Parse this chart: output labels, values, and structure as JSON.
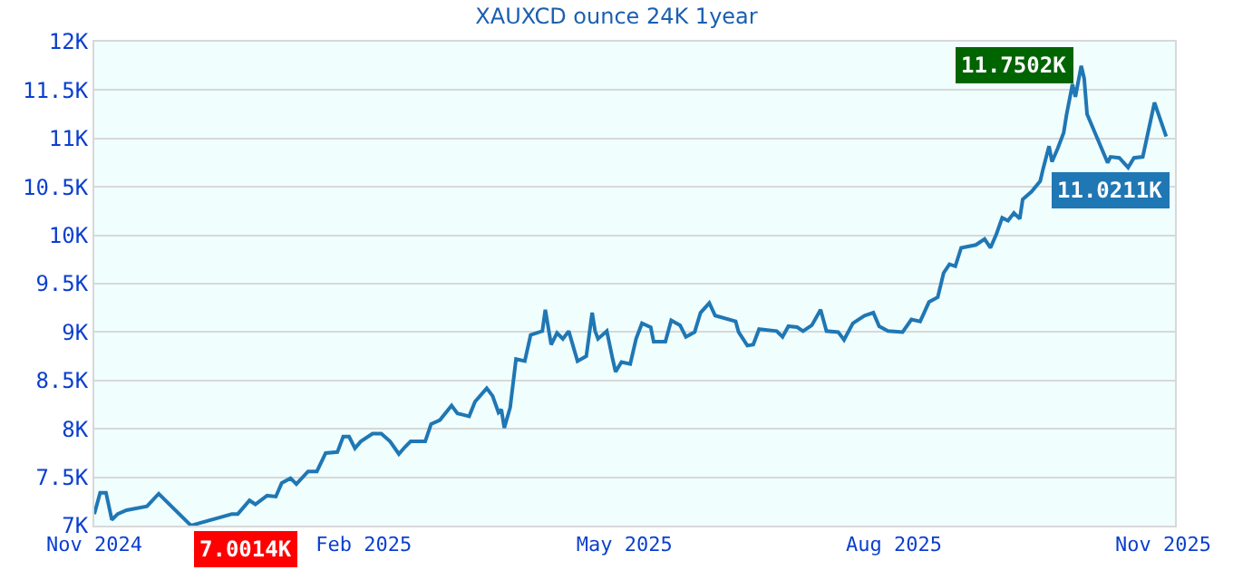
{
  "chart_data": {
    "type": "line",
    "title": "XAUXCD ounce 24K 1year",
    "x": [
      "2024-11-01",
      "2024-11-03",
      "2024-11-05",
      "2024-11-07",
      "2024-11-09",
      "2024-11-12",
      "2024-11-19",
      "2024-11-23",
      "2024-12-04",
      "2024-12-18",
      "2024-12-20",
      "2024-12-24",
      "2024-12-26",
      "2024-12-30",
      "2025-01-02",
      "2025-01-04",
      "2025-01-07",
      "2025-01-09",
      "2025-01-13",
      "2025-01-16",
      "2025-01-19",
      "2025-01-23",
      "2025-01-25",
      "2025-01-27",
      "2025-01-29",
      "2025-01-31",
      "2025-02-04",
      "2025-02-07",
      "2025-02-10",
      "2025-02-13",
      "2025-02-15",
      "2025-02-17",
      "2025-02-22",
      "2025-02-24",
      "2025-02-27",
      "2025-03-03",
      "2025-03-05",
      "2025-03-09",
      "2025-03-11",
      "2025-03-15",
      "2025-03-17",
      "2025-03-19",
      "2025-03-20",
      "2025-03-21",
      "2025-03-23",
      "2025-03-25",
      "2025-03-28",
      "2025-03-30",
      "2025-04-03",
      "2025-04-04",
      "2025-04-06",
      "2025-04-08",
      "2025-04-10",
      "2025-04-12",
      "2025-04-15",
      "2025-04-18",
      "2025-04-20",
      "2025-04-21",
      "2025-04-22",
      "2025-04-25",
      "2025-04-27",
      "2025-04-28",
      "2025-04-30",
      "2025-05-03",
      "2025-05-05",
      "2025-05-07",
      "2025-05-10",
      "2025-05-11",
      "2025-05-15",
      "2025-05-17",
      "2025-05-20",
      "2025-05-22",
      "2025-05-25",
      "2025-05-27",
      "2025-05-30",
      "2025-06-01",
      "2025-06-08",
      "2025-06-09",
      "2025-06-12",
      "2025-06-14",
      "2025-06-16",
      "2025-06-22",
      "2025-06-24",
      "2025-06-26",
      "2025-06-29",
      "2025-07-01",
      "2025-07-04",
      "2025-07-07",
      "2025-07-09",
      "2025-07-13",
      "2025-07-15",
      "2025-07-18",
      "2025-07-19",
      "2025-07-22",
      "2025-07-25",
      "2025-07-27",
      "2025-07-30",
      "2025-08-04",
      "2025-08-07",
      "2025-08-10",
      "2025-08-13",
      "2025-08-16",
      "2025-08-18",
      "2025-08-20",
      "2025-08-22",
      "2025-08-24",
      "2025-08-29",
      "2025-09-01",
      "2025-09-03",
      "2025-09-05",
      "2025-09-07",
      "2025-09-09",
      "2025-09-11",
      "2025-09-13",
      "2025-09-14",
      "2025-09-17",
      "2025-09-20",
      "2025-09-21",
      "2025-09-23",
      "2025-09-24",
      "2025-09-26",
      "2025-09-28",
      "2025-09-29",
      "2025-10-01",
      "2025-10-02",
      "2025-10-04",
      "2025-10-05",
      "2025-10-06",
      "2025-10-13",
      "2025-10-14",
      "2025-10-17",
      "2025-10-20",
      "2025-10-22",
      "2025-10-25",
      "2025-10-29",
      "2025-11-02"
    ],
    "series": [
      {
        "color": "#1f77b4",
        "values": [
          7120,
          7340,
          7340,
          7060,
          7120,
          7160,
          7200,
          7330,
          7001.4,
          7120,
          7120,
          7260,
          7220,
          7310,
          7300,
          7440,
          7490,
          7430,
          7560,
          7560,
          7750,
          7760,
          7920,
          7920,
          7800,
          7870,
          7950,
          7950,
          7870,
          7740,
          7810,
          7870,
          7870,
          8050,
          8090,
          8240,
          8160,
          8130,
          8280,
          8420,
          8340,
          8170,
          8200,
          8010,
          8220,
          8720,
          8700,
          8970,
          9010,
          9230,
          8870,
          8990,
          8930,
          9010,
          8700,
          8750,
          9200,
          9010,
          8930,
          9010,
          8720,
          8590,
          8690,
          8670,
          8930,
          9090,
          9050,
          8900,
          8900,
          9120,
          9070,
          8950,
          9000,
          9200,
          9300,
          9170,
          9110,
          9000,
          8860,
          8870,
          9030,
          9010,
          8950,
          9060,
          9050,
          9010,
          9070,
          9230,
          9010,
          9000,
          8920,
          9090,
          9110,
          9170,
          9200,
          9060,
          9010,
          9000,
          9130,
          9110,
          9310,
          9360,
          9610,
          9700,
          9680,
          9870,
          9900,
          9960,
          9870,
          10010,
          10180,
          10150,
          10230,
          10170,
          10370,
          10450,
          10560,
          10690,
          10920,
          10760,
          10900,
          11060,
          11250,
          11560,
          11430,
          11750.2,
          11620,
          11250,
          10750,
          10810,
          10800,
          10700,
          10800,
          10810,
          11370,
          11021.1
        ]
      }
    ],
    "xlim": [
      "2024-11-01",
      "2025-11-05"
    ],
    "xticks": [
      {
        "value": "2024-11-01",
        "label": "Nov 2024"
      },
      {
        "value": "2025-02-01",
        "label": "Feb 2025"
      },
      {
        "value": "2025-05-01",
        "label": "May 2025"
      },
      {
        "value": "2025-08-01",
        "label": "Aug 2025"
      },
      {
        "value": "2025-11-01",
        "label": "Nov 2025"
      }
    ],
    "ylim": [
      7000,
      12000
    ],
    "yticks": [
      {
        "value": 7000,
        "label": "7K"
      },
      {
        "value": 7500,
        "label": "7.5K"
      },
      {
        "value": 8000,
        "label": "8K"
      },
      {
        "value": 8500,
        "label": "8.5K"
      },
      {
        "value": 9000,
        "label": "9K"
      },
      {
        "value": 9500,
        "label": "9.5K"
      },
      {
        "value": 10000,
        "label": "10K"
      },
      {
        "value": 10500,
        "label": "10.5K"
      },
      {
        "value": 11000,
        "label": "11K"
      },
      {
        "value": 11500,
        "label": "11.5K"
      },
      {
        "value": 12000,
        "label": "12K"
      }
    ],
    "grid": "y",
    "marker": "none",
    "line_style": "solid",
    "annotations": [
      {
        "text": "11.7502K",
        "x": "2025-10-04",
        "y": 11750.2
      },
      {
        "text": "7.0014K",
        "x": "2024-12-04",
        "y": 7001.4
      },
      {
        "text": "11.0211K",
        "x": "2025-11-02",
        "y": 11021.1
      }
    ]
  }
}
